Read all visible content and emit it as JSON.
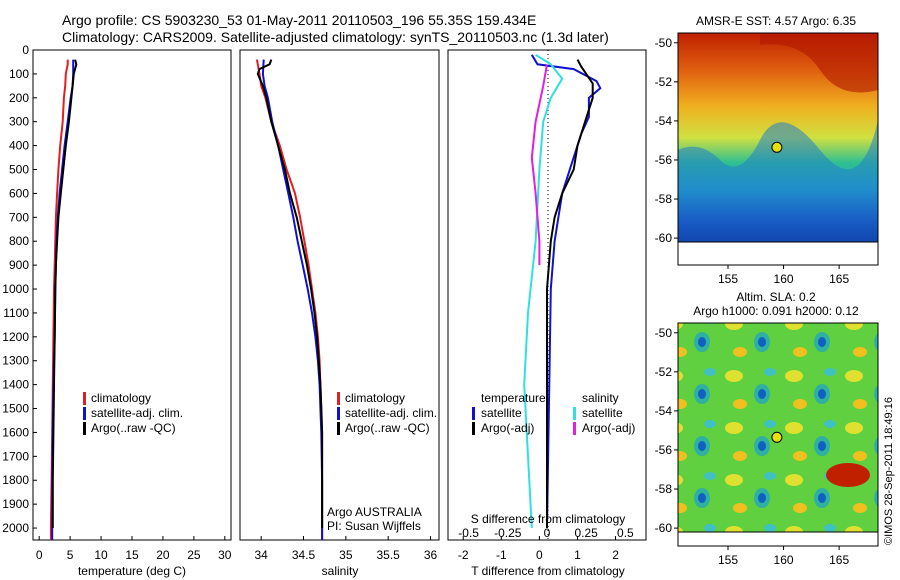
{
  "header": {
    "line1": "Argo profile: CS 5903230_53 01-May-2011 20110503_196 55.35S 159.434E",
    "line2": "Climatology: CARS2009. Satellite-adjusted climatology: synTS_20110503.nc (1.3d later)"
  },
  "colors": {
    "climatology": "#e02020",
    "satellite": "#1010d0",
    "argo": "#000000",
    "sat_s": "#30e0e0",
    "argo_s": "#e020e0"
  },
  "chart_data": [
    {
      "type": "line",
      "panel": "temperature",
      "xlabel": "temperature (deg C)",
      "xlim": [
        -1,
        31
      ],
      "xticks": [
        0,
        5,
        10,
        15,
        20,
        25,
        30
      ],
      "ylim": [
        2050,
        0
      ],
      "yticks": [
        0,
        100,
        200,
        300,
        400,
        500,
        600,
        700,
        800,
        900,
        1000,
        1100,
        1200,
        1300,
        1400,
        1500,
        1600,
        1700,
        1800,
        1900,
        2000
      ],
      "legend": [
        "climatology",
        "satellite-adj. clim.",
        "Argo(..raw -QC)"
      ],
      "series": [
        {
          "name": "climatology",
          "color": "#e02020",
          "points": [
            [
              4.6,
              40
            ],
            [
              4.6,
              60
            ],
            [
              4.3,
              100
            ],
            [
              4.2,
              150
            ],
            [
              4.0,
              200
            ],
            [
              3.8,
              300
            ],
            [
              3.4,
              400
            ],
            [
              3.1,
              500
            ],
            [
              2.9,
              600
            ],
            [
              2.7,
              700
            ],
            [
              2.6,
              800
            ],
            [
              2.5,
              900
            ],
            [
              2.4,
              1000
            ],
            [
              2.3,
              1200
            ],
            [
              2.2,
              1400
            ],
            [
              2.1,
              1600
            ],
            [
              2.0,
              1800
            ],
            [
              1.9,
              2000
            ],
            [
              1.9,
              2050
            ]
          ]
        },
        {
          "name": "satellite-adj. clim.",
          "color": "#1010d0",
          "points": [
            [
              5.5,
              40
            ],
            [
              5.5,
              100
            ],
            [
              5.4,
              150
            ],
            [
              5.1,
              200
            ],
            [
              4.6,
              300
            ],
            [
              4.1,
              400
            ],
            [
              3.7,
              500
            ],
            [
              3.3,
              600
            ],
            [
              3.0,
              700
            ],
            [
              2.8,
              800
            ],
            [
              2.7,
              900
            ],
            [
              2.6,
              1000
            ],
            [
              2.5,
              1200
            ],
            [
              2.3,
              1400
            ],
            [
              2.2,
              1600
            ],
            [
              2.1,
              1800
            ],
            [
              2.1,
              2000
            ],
            [
              2.1,
              2050
            ]
          ]
        },
        {
          "name": "Argo(..raw -QC)",
          "color": "#000000",
          "points": [
            [
              5.8,
              40
            ],
            [
              6.0,
              60
            ],
            [
              5.6,
              100
            ],
            [
              5.2,
              200
            ],
            [
              4.8,
              300
            ],
            [
              4.3,
              400
            ],
            [
              3.9,
              500
            ],
            [
              3.5,
              600
            ],
            [
              3.1,
              700
            ],
            [
              2.9,
              800
            ],
            [
              2.7,
              900
            ],
            [
              2.6,
              1000
            ],
            [
              2.5,
              1200
            ],
            [
              2.4,
              1400
            ],
            [
              2.3,
              1600
            ],
            [
              2.2,
              1800
            ],
            [
              2.2,
              2000
            ]
          ]
        }
      ]
    },
    {
      "type": "line",
      "panel": "salinity",
      "xlabel": "salinity",
      "xlim": [
        33.75,
        36.1
      ],
      "xticks": [
        34,
        34.5,
        35,
        35.5,
        36
      ],
      "ylim": [
        2050,
        0
      ],
      "legend": [
        "climatology",
        "satellite-adj. clim.",
        "Argo(..raw -QC)"
      ],
      "annotation": [
        "Argo AUSTRALIA",
        "PI: Susan Wijffels"
      ],
      "series": [
        {
          "name": "climatology",
          "color": "#e02020",
          "points": [
            [
              33.95,
              40
            ],
            [
              33.98,
              100
            ],
            [
              34.0,
              150
            ],
            [
              34.05,
              200
            ],
            [
              34.12,
              300
            ],
            [
              34.22,
              400
            ],
            [
              34.3,
              500
            ],
            [
              34.4,
              600
            ],
            [
              34.46,
              700
            ],
            [
              34.51,
              800
            ],
            [
              34.56,
              900
            ],
            [
              34.6,
              1000
            ],
            [
              34.64,
              1100
            ],
            [
              34.67,
              1200
            ],
            [
              34.69,
              1300
            ],
            [
              34.7,
              1400
            ],
            [
              34.71,
              1500
            ],
            [
              34.72,
              1600
            ],
            [
              34.72,
              1800
            ],
            [
              34.72,
              2050
            ]
          ]
        },
        {
          "name": "satellite-adj. clim.",
          "color": "#1010d0",
          "points": [
            [
              34.03,
              40
            ],
            [
              34.02,
              100
            ],
            [
              34.04,
              150
            ],
            [
              34.08,
              200
            ],
            [
              34.13,
              300
            ],
            [
              34.2,
              400
            ],
            [
              34.26,
              500
            ],
            [
              34.32,
              600
            ],
            [
              34.38,
              700
            ],
            [
              34.43,
              800
            ],
            [
              34.49,
              900
            ],
            [
              34.55,
              1000
            ],
            [
              34.6,
              1100
            ],
            [
              34.64,
              1200
            ],
            [
              34.67,
              1300
            ],
            [
              34.69,
              1400
            ],
            [
              34.7,
              1500
            ],
            [
              34.71,
              1600
            ],
            [
              34.72,
              1800
            ],
            [
              34.72,
              2050
            ]
          ]
        },
        {
          "name": "Argo(..raw -QC)",
          "color": "#000000",
          "points": [
            [
              34.12,
              40
            ],
            [
              34.1,
              60
            ],
            [
              33.98,
              80
            ],
            [
              33.96,
              100
            ],
            [
              34.02,
              150
            ],
            [
              34.06,
              200
            ],
            [
              34.12,
              300
            ],
            [
              34.2,
              400
            ],
            [
              34.28,
              500
            ],
            [
              34.34,
              600
            ],
            [
              34.42,
              700
            ],
            [
              34.48,
              800
            ],
            [
              34.54,
              900
            ],
            [
              34.59,
              1000
            ],
            [
              34.63,
              1100
            ],
            [
              34.66,
              1200
            ],
            [
              34.68,
              1300
            ],
            [
              34.7,
              1400
            ],
            [
              34.71,
              1500
            ],
            [
              34.72,
              1600
            ],
            [
              34.72,
              1800
            ],
            [
              34.72,
              2000
            ]
          ]
        }
      ]
    },
    {
      "type": "line",
      "panel": "difference",
      "xlabel": "T difference from climatology",
      "xlabel_top": "S difference from climatology",
      "xlim": [
        -2.4,
        2.8
      ],
      "xticks": [
        -2,
        -1,
        0,
        1,
        2
      ],
      "xticks_s": [
        -0.5,
        -0.25,
        0,
        0.25,
        0.5
      ],
      "ylim": [
        2050,
        0
      ],
      "legend_headers": [
        "temperature",
        "salinity"
      ],
      "legend": [
        [
          "satellite",
          "Argo(-adj)"
        ],
        [
          "satellite",
          "Argo(-adj)"
        ]
      ],
      "series": [
        {
          "name": "satellite",
          "group": "temperature",
          "color": "#1010d0",
          "points": [
            [
              -0.2,
              20
            ],
            [
              -0.05,
              60
            ],
            [
              0.9,
              80
            ],
            [
              1.5,
              130
            ],
            [
              1.6,
              160
            ],
            [
              1.3,
              200
            ],
            [
              1.3,
              280
            ],
            [
              1.1,
              350
            ],
            [
              0.8,
              500
            ],
            [
              0.6,
              600
            ],
            [
              0.4,
              800
            ],
            [
              0.3,
              1000
            ],
            [
              0.25,
              1500
            ],
            [
              0.2,
              2000
            ]
          ]
        },
        {
          "name": "Argo(-adj)",
          "group": "temperature",
          "color": "#000000",
          "points": [
            [
              1.0,
              40
            ],
            [
              1.1,
              70
            ],
            [
              1.4,
              140
            ],
            [
              1.4,
              200
            ],
            [
              1.2,
              300
            ],
            [
              1.0,
              400
            ],
            [
              0.9,
              500
            ],
            [
              0.6,
              600
            ],
            [
              0.4,
              700
            ],
            [
              0.3,
              800
            ],
            [
              0.2,
              1000
            ],
            [
              0.2,
              1500
            ],
            [
              0.2,
              2000
            ]
          ]
        },
        {
          "name": "satellite",
          "group": "salinity",
          "color": "#30e0e0",
          "points": [
            [
              -0.1,
              20
            ],
            [
              0.3,
              60
            ],
            [
              0.6,
              120
            ],
            [
              0.3,
              200
            ],
            [
              0.1,
              300
            ],
            [
              0.0,
              500
            ],
            [
              -0.1,
              800
            ],
            [
              -0.3,
              1100
            ],
            [
              -0.4,
              1400
            ],
            [
              -0.3,
              1700
            ],
            [
              -0.2,
              2000
            ]
          ]
        },
        {
          "name": "Argo(-adj)",
          "group": "salinity",
          "color": "#e020e0",
          "points": [
            [
              0.2,
              60
            ],
            [
              0.1,
              150
            ],
            [
              -0.1,
              300
            ],
            [
              -0.2,
              450
            ],
            [
              -0.1,
              600
            ],
            [
              0.0,
              800
            ],
            [
              0.0,
              900
            ]
          ]
        }
      ]
    },
    {
      "type": "heatmap",
      "panel": "sst",
      "title": "AMSR-E SST: 4.57 Argo: 6.35",
      "xlim": [
        150.5,
        168.5
      ],
      "ylim": [
        -60.2,
        -49.5
      ],
      "xticks": [
        155,
        160,
        165
      ],
      "yticks": [
        -50,
        -52,
        -54,
        -56,
        -58,
        -60
      ],
      "marker": [
        159.4,
        -55.35
      ]
    },
    {
      "type": "heatmap",
      "panel": "sla",
      "title": "Altim. SLA: 0.2",
      "subtitle": "Argo h1000: 0.091 h2000: 0.12",
      "xlim": [
        150.5,
        168.5
      ],
      "ylim": [
        -60.2,
        -49.5
      ],
      "xticks": [
        155,
        160,
        165
      ],
      "yticks": [
        -50,
        -52,
        -54,
        -56,
        -58,
        -60
      ],
      "marker": [
        159.4,
        -55.35
      ]
    }
  ],
  "footer": {
    "credit": "©IMOS 28-Sep-2011 18:49:16"
  }
}
